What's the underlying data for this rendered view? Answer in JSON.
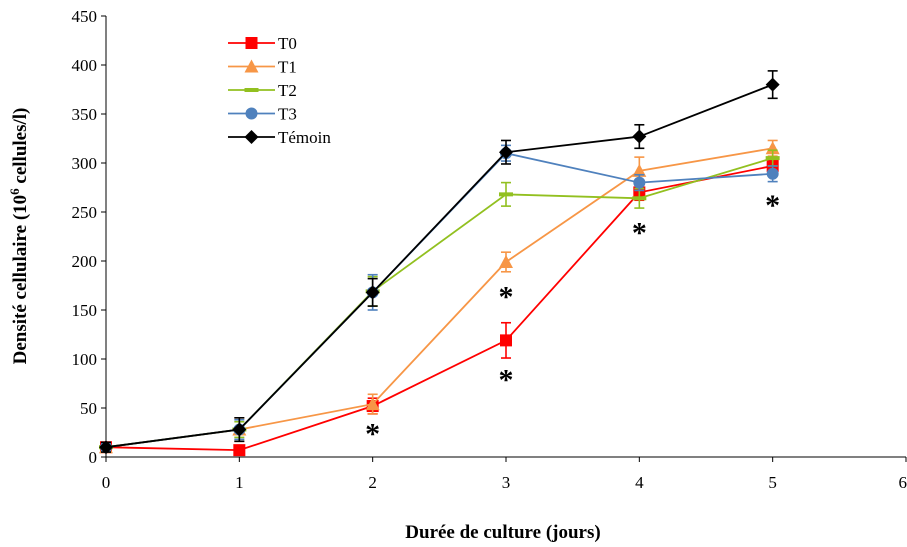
{
  "chart_data": {
    "type": "line",
    "xlabel": "Durée de culture (jours)",
    "ylabel_main": "Densité cellulaire (10",
    "ylabel_sup": "6",
    "ylabel_tail": " cellules/l)",
    "xlim": [
      0,
      6
    ],
    "ylim": [
      0,
      450
    ],
    "x_ticks": [
      "0",
      "1",
      "2",
      "3",
      "4",
      "5",
      "6"
    ],
    "y_ticks": [
      "0",
      "50",
      "100",
      "150",
      "200",
      "250",
      "300",
      "350",
      "400",
      "450"
    ],
    "grid": false,
    "legend_position": "top-left",
    "x": [
      0,
      1,
      2,
      3,
      4,
      5
    ],
    "series": [
      {
        "name": "T0",
        "color": "#ff0000",
        "marker": "square",
        "values": [
          10,
          7,
          52,
          119,
          270,
          297
        ],
        "errors": [
          4,
          3,
          8,
          18,
          8,
          8
        ]
      },
      {
        "name": "T1",
        "color": "#f79646",
        "marker": "triangle",
        "values": [
          10,
          28,
          54,
          199,
          292,
          315
        ],
        "errors": [
          4,
          12,
          10,
          10,
          14,
          8
        ]
      },
      {
        "name": "T2",
        "color": "#92c020",
        "marker": "dash",
        "values": [
          10,
          28,
          169,
          268,
          264,
          305
        ],
        "errors": [
          4,
          8,
          15,
          12,
          10,
          8
        ]
      },
      {
        "name": "T3",
        "color": "#4f81bd",
        "marker": "circle",
        "values": [
          10,
          28,
          168,
          310,
          280,
          289
        ],
        "errors": [
          4,
          10,
          18,
          8,
          8,
          8
        ]
      },
      {
        "name": "Témoin",
        "color": "#000000",
        "marker": "diamond",
        "values": [
          10,
          28,
          168,
          311,
          327,
          380
        ],
        "errors": [
          5,
          12,
          14,
          12,
          12,
          14
        ]
      }
    ],
    "annotations": [
      {
        "text": "*",
        "x": 2,
        "y": 25
      },
      {
        "text": "*",
        "x": 3,
        "y": 80
      },
      {
        "text": "*",
        "x": 3,
        "y": 165
      },
      {
        "text": "*",
        "x": 4,
        "y": 230
      },
      {
        "text": "*",
        "x": 5,
        "y": 258
      }
    ]
  }
}
